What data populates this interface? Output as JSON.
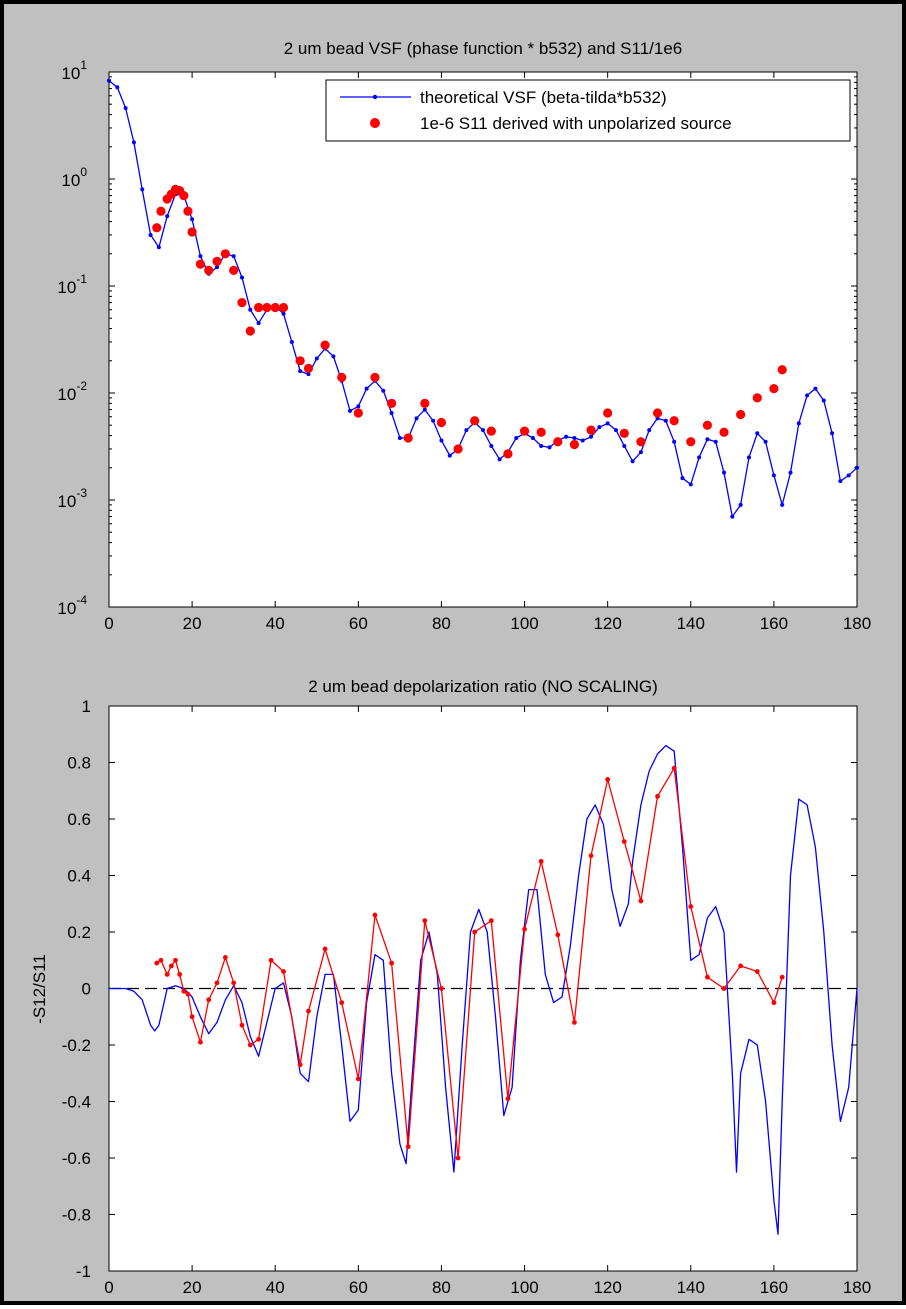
{
  "charts": [
    {
      "title": "2 um bead VSF (phase function * b532) and S11/1e6",
      "legend": [
        "theoretical VSF (beta-tilda*b532)",
        "1e-6 S11 derived with unpolarized source"
      ]
    },
    {
      "title": "2 um bead depolarization ratio (NO SCALING)",
      "ylabel": "-S12/S11"
    }
  ],
  "chart_data": [
    {
      "type": "scatter",
      "title": "2 um bead VSF (phase function * b532) and S11/1e6",
      "xlabel": "",
      "ylabel": "",
      "xlim": [
        0,
        180
      ],
      "ylim": [
        0.0001,
        10
      ],
      "yscale": "log",
      "xticks": [
        "0",
        "20",
        "40",
        "60",
        "80",
        "100",
        "120",
        "140",
        "160",
        "180"
      ],
      "yticks": [
        {
          "base": "10",
          "exp": "-4"
        },
        {
          "base": "10",
          "exp": "-3"
        },
        {
          "base": "10",
          "exp": "-2"
        },
        {
          "base": "10",
          "exp": "-1"
        },
        {
          "base": "10",
          "exp": "0"
        },
        {
          "base": "10",
          "exp": "1"
        }
      ],
      "legend_position": "top-right",
      "series": [
        {
          "name": "theoretical VSF (beta-tilda*b532)",
          "style": "line-with-dots",
          "color": "#0000ff",
          "x": [
            0,
            2,
            4,
            6,
            8,
            10,
            12,
            14,
            16,
            18,
            20,
            22,
            24,
            26,
            28,
            30,
            32,
            34,
            36,
            38,
            40,
            42,
            44,
            46,
            48,
            50,
            52,
            54,
            56,
            58,
            60,
            62,
            64,
            66,
            68,
            70,
            72,
            74,
            76,
            78,
            80,
            82,
            84,
            86,
            88,
            90,
            92,
            94,
            96,
            98,
            100,
            102,
            104,
            106,
            108,
            110,
            112,
            114,
            116,
            118,
            120,
            122,
            124,
            126,
            128,
            130,
            132,
            134,
            136,
            138,
            140,
            142,
            144,
            146,
            148,
            150,
            152,
            154,
            156,
            158,
            160,
            162,
            164,
            166,
            168,
            170,
            172,
            174,
            176,
            178,
            180
          ],
          "y": [
            8.3,
            7.2,
            4.6,
            2.2,
            0.8,
            0.3,
            0.23,
            0.45,
            0.72,
            0.7,
            0.42,
            0.19,
            0.13,
            0.15,
            0.2,
            0.19,
            0.12,
            0.06,
            0.045,
            0.06,
            0.065,
            0.055,
            0.03,
            0.016,
            0.015,
            0.021,
            0.026,
            0.022,
            0.013,
            0.0068,
            0.0075,
            0.011,
            0.013,
            0.0105,
            0.0065,
            0.0038,
            0.0038,
            0.0058,
            0.007,
            0.0055,
            0.0036,
            0.0026,
            0.003,
            0.0045,
            0.0053,
            0.0045,
            0.0032,
            0.0024,
            0.0028,
            0.0038,
            0.0042,
            0.0038,
            0.0032,
            0.0031,
            0.0036,
            0.0039,
            0.0038,
            0.0036,
            0.0039,
            0.0048,
            0.0052,
            0.0045,
            0.0032,
            0.0023,
            0.0028,
            0.0045,
            0.0058,
            0.0055,
            0.0035,
            0.0016,
            0.0014,
            0.0025,
            0.0037,
            0.0035,
            0.0018,
            0.0007,
            0.0009,
            0.0025,
            0.0042,
            0.0035,
            0.0017,
            0.0009,
            0.0018,
            0.0052,
            0.0095,
            0.011,
            0.0085,
            0.0042,
            0.0015,
            0.0017,
            0.002
          ]
        },
        {
          "name": "1e-6 S11 derived with unpolarized source",
          "style": "markers",
          "color": "#ff0000",
          "x": [
            11.5,
            12.5,
            14,
            15,
            16,
            17,
            18,
            19,
            20,
            22,
            24,
            26,
            28,
            30,
            32,
            34,
            36,
            38,
            40,
            42,
            46,
            48,
            52,
            56,
            60,
            64,
            68,
            72,
            76,
            80,
            84,
            88,
            92,
            96,
            100,
            104,
            108,
            112,
            116,
            120,
            124,
            128,
            132,
            136,
            140,
            144,
            148,
            152,
            156,
            160,
            162
          ],
          "y": [
            0.35,
            0.5,
            0.65,
            0.72,
            0.8,
            0.78,
            0.7,
            0.5,
            0.32,
            0.16,
            0.14,
            0.17,
            0.2,
            0.14,
            0.07,
            0.038,
            0.063,
            0.063,
            0.063,
            0.063,
            0.02,
            0.017,
            0.028,
            0.014,
            0.0065,
            0.014,
            0.008,
            0.0038,
            0.008,
            0.0053,
            0.003,
            0.0055,
            0.0044,
            0.0027,
            0.0044,
            0.0043,
            0.0035,
            0.0033,
            0.0045,
            0.0065,
            0.0042,
            0.0035,
            0.0065,
            0.0055,
            0.0035,
            0.005,
            0.0043,
            0.0063,
            0.009,
            0.011,
            0.0165
          ]
        }
      ]
    },
    {
      "type": "line",
      "title": "2 um bead depolarization ratio (NO SCALING)",
      "xlabel": "",
      "ylabel": "-S12/S11",
      "xlim": [
        0,
        180
      ],
      "ylim": [
        -1,
        1
      ],
      "xticks": [
        "0",
        "20",
        "40",
        "60",
        "80",
        "100",
        "120",
        "140",
        "160",
        "180"
      ],
      "yticks": [
        "-1",
        "-0.8",
        "-0.6",
        "-0.4",
        "-0.2",
        "0",
        "0.2",
        "0.4",
        "0.6",
        "0.8",
        "1"
      ],
      "reference_line": {
        "y": 0,
        "style": "dashed",
        "color": "#000000"
      },
      "series": [
        {
          "style": "line",
          "color": "#0000ff",
          "x": [
            0,
            4,
            6,
            8,
            10,
            11,
            12,
            14,
            16,
            18,
            20,
            22,
            24,
            26,
            28,
            30,
            32,
            34,
            36,
            38,
            40,
            42,
            44,
            46,
            48,
            50,
            52,
            54,
            56,
            58,
            60,
            62,
            64,
            66,
            68,
            70,
            71.5,
            73,
            75,
            77,
            79,
            81,
            83,
            85,
            87,
            89,
            91,
            93,
            95,
            97,
            99,
            101,
            103,
            105,
            107,
            109,
            111,
            113,
            115,
            117,
            119,
            121,
            123,
            125,
            126,
            128,
            130,
            132,
            134,
            136,
            138,
            140,
            142,
            144,
            146,
            148,
            150,
            151,
            152,
            154,
            156,
            158,
            160,
            161,
            162,
            164,
            166,
            168,
            170,
            172,
            174,
            176,
            178,
            180
          ],
          "y": [
            0,
            0,
            -0.01,
            -0.04,
            -0.13,
            -0.15,
            -0.13,
            0,
            0.01,
            0,
            -0.03,
            -0.1,
            -0.16,
            -0.12,
            -0.04,
            0.01,
            -0.05,
            -0.17,
            -0.24,
            -0.12,
            0,
            0.02,
            -0.1,
            -0.3,
            -0.33,
            -0.1,
            0.05,
            0.05,
            -0.2,
            -0.47,
            -0.43,
            -0.05,
            0.12,
            0.1,
            -0.3,
            -0.55,
            -0.62,
            -0.3,
            0.1,
            0.2,
            0.05,
            -0.35,
            -0.65,
            -0.2,
            0.2,
            0.28,
            0.2,
            -0.1,
            -0.45,
            -0.35,
            0.1,
            0.35,
            0.35,
            0.05,
            -0.05,
            -0.03,
            0.15,
            0.4,
            0.6,
            0.65,
            0.58,
            0.35,
            0.22,
            0.3,
            0.45,
            0.65,
            0.77,
            0.83,
            0.86,
            0.84,
            0.5,
            0.1,
            0.12,
            0.25,
            0.29,
            0.2,
            -0.3,
            -0.65,
            -0.3,
            -0.18,
            -0.2,
            -0.4,
            -0.75,
            -0.87,
            -0.4,
            0.4,
            0.67,
            0.65,
            0.5,
            0.2,
            -0.2,
            -0.47,
            -0.35,
            0
          ]
        },
        {
          "style": "line-with-dots",
          "color": "#ff0000",
          "x": [
            11.5,
            12.5,
            14,
            15,
            16,
            17,
            18,
            19,
            20,
            22,
            24,
            26,
            28,
            30,
            32,
            34,
            36,
            39,
            42,
            46,
            48,
            52,
            56,
            60,
            64,
            68,
            72,
            76,
            80,
            84,
            88,
            92,
            96,
            100,
            104,
            108,
            112,
            116,
            120,
            124,
            128,
            132,
            136,
            140,
            144,
            148,
            152,
            156,
            160,
            162
          ],
          "y": [
            0.09,
            0.1,
            0.05,
            0.08,
            0.1,
            0.05,
            -0.01,
            -0.02,
            -0.1,
            -0.19,
            -0.04,
            0.02,
            0.11,
            0.02,
            -0.13,
            -0.2,
            -0.18,
            0.1,
            0.06,
            -0.27,
            -0.08,
            0.14,
            -0.05,
            -0.32,
            0.26,
            0.09,
            -0.56,
            0.24,
            0,
            -0.6,
            0.2,
            0.24,
            -0.39,
            0.21,
            0.45,
            0.19,
            -0.12,
            0.47,
            0.74,
            0.52,
            0.31,
            0.68,
            0.78,
            0.29,
            0.04,
            0,
            0.08,
            0.06,
            -0.05,
            0.04
          ]
        }
      ]
    }
  ]
}
